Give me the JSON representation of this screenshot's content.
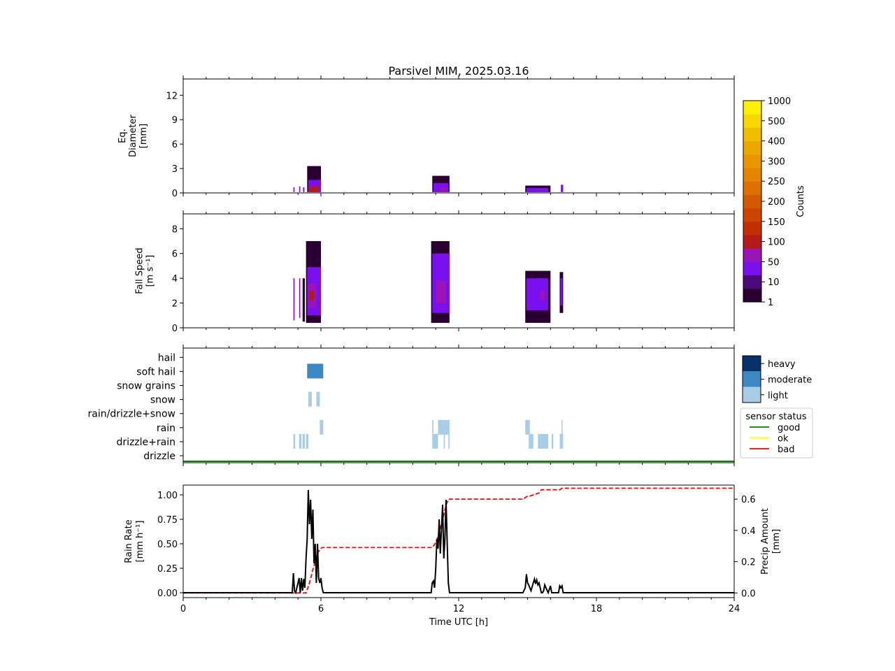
{
  "chart_data": [
    {
      "panel": "diameter",
      "type": "heatmap",
      "title": "Parsivel MIM, 2025.03.16",
      "ylabel_lines": [
        "Eq.",
        "Diameter",
        "[mm]"
      ],
      "ylim": [
        0,
        14
      ],
      "yticks": [
        0,
        3,
        6,
        9,
        12
      ],
      "xlim": [
        0,
        24
      ],
      "blobs": [
        {
          "x0": 4.8,
          "x1": 4.85,
          "y0": 0.1,
          "y1": 0.7,
          "level": "10"
        },
        {
          "x0": 5.05,
          "x1": 5.1,
          "y0": 0.1,
          "y1": 0.8,
          "level": "10"
        },
        {
          "x0": 5.22,
          "x1": 5.28,
          "y0": 0.1,
          "y1": 0.7,
          "level": "50"
        },
        {
          "x0": 5.4,
          "x1": 6.0,
          "y0": 0.1,
          "y1": 3.3,
          "level": "1"
        },
        {
          "x0": 5.45,
          "x1": 6.0,
          "y0": 0.1,
          "y1": 1.6,
          "level": "10"
        },
        {
          "x0": 5.5,
          "x1": 5.9,
          "y0": 0.1,
          "y1": 0.8,
          "level": "100"
        },
        {
          "x0": 10.85,
          "x1": 11.6,
          "y0": 0.1,
          "y1": 2.1,
          "level": "1"
        },
        {
          "x0": 10.9,
          "x1": 11.55,
          "y0": 0.1,
          "y1": 1.2,
          "level": "10"
        },
        {
          "x0": 11.2,
          "x1": 11.5,
          "y0": 0.1,
          "y1": 0.7,
          "level": "50"
        },
        {
          "x0": 14.9,
          "x1": 16.0,
          "y0": 0.1,
          "y1": 0.9,
          "level": "1"
        },
        {
          "x0": 14.95,
          "x1": 15.9,
          "y0": 0.1,
          "y1": 0.6,
          "level": "10"
        },
        {
          "x0": 16.45,
          "x1": 16.55,
          "y0": 0.1,
          "y1": 1.0,
          "level": "10"
        }
      ],
      "colorbar": {
        "label": "Counts",
        "ticks": [
          "1",
          "10",
          "50",
          "100",
          "150",
          "200",
          "250",
          "300",
          "400",
          "500",
          "1000"
        ],
        "colors": [
          "#2a0033",
          "#4a0a7a",
          "#7a10ee",
          "#9a14b8",
          "#b51a18",
          "#c42e00",
          "#cc4400",
          "#d45a00",
          "#dd7000",
          "#e48400",
          "#e99600",
          "#eda800",
          "#f2bd00",
          "#f8d800",
          "#ffef00"
        ]
      }
    },
    {
      "panel": "fall-speed",
      "type": "heatmap",
      "ylabel_lines": [
        "Fall Speed",
        "[m s⁻¹]"
      ],
      "ylim": [
        0,
        9.2
      ],
      "yticks": [
        0,
        2,
        4,
        6,
        8
      ],
      "xlim": [
        0,
        24
      ],
      "blobs": [
        {
          "x0": 4.8,
          "x1": 4.85,
          "y0": 0.6,
          "y1": 4.0,
          "level": "10"
        },
        {
          "x0": 5.05,
          "x1": 5.1,
          "y0": 0.8,
          "y1": 4.0,
          "level": "10"
        },
        {
          "x0": 5.2,
          "x1": 5.3,
          "y0": 0.5,
          "y1": 4.0,
          "level": "1"
        },
        {
          "x0": 5.35,
          "x1": 6.0,
          "y0": 0.4,
          "y1": 7.0,
          "level": "1"
        },
        {
          "x0": 5.4,
          "x1": 6.0,
          "y0": 1.0,
          "y1": 4.9,
          "level": "10"
        },
        {
          "x0": 5.45,
          "x1": 5.8,
          "y0": 1.6,
          "y1": 3.6,
          "level": "50"
        },
        {
          "x0": 5.5,
          "x1": 5.7,
          "y0": 2.2,
          "y1": 3.0,
          "level": "100"
        },
        {
          "x0": 10.8,
          "x1": 11.6,
          "y0": 0.4,
          "y1": 7.0,
          "level": "1"
        },
        {
          "x0": 10.85,
          "x1": 11.6,
          "y0": 1.2,
          "y1": 6.0,
          "level": "10"
        },
        {
          "x0": 11.0,
          "x1": 11.45,
          "y0": 2.0,
          "y1": 3.8,
          "level": "50"
        },
        {
          "x0": 14.9,
          "x1": 16.0,
          "y0": 0.4,
          "y1": 4.6,
          "level": "1"
        },
        {
          "x0": 14.95,
          "x1": 15.9,
          "y0": 1.4,
          "y1": 4.0,
          "level": "10"
        },
        {
          "x0": 15.55,
          "x1": 15.75,
          "y0": 2.2,
          "y1": 3.0,
          "level": "50"
        },
        {
          "x0": 16.4,
          "x1": 16.55,
          "y0": 1.2,
          "y1": 4.5,
          "level": "1"
        },
        {
          "x0": 16.43,
          "x1": 16.52,
          "y0": 1.8,
          "y1": 4.0,
          "level": "10"
        }
      ]
    },
    {
      "panel": "precip-type",
      "type": "heatmap",
      "categories": [
        "drizzle",
        "drizzle+rain",
        "rain",
        "rain/drizzle+snow",
        "snow",
        "snow grains",
        "soft hail",
        "hail"
      ],
      "xlim": [
        0,
        24
      ],
      "intensity_colors": {
        "light": "#a8cde6",
        "moderate": "#3b88c2",
        "heavy": "#08306b"
      },
      "legend": {
        "labels": [
          "heavy",
          "moderate",
          "light"
        ],
        "keys": [
          "heavy",
          "moderate",
          "light"
        ]
      },
      "blocks": [
        {
          "cat": "soft hail",
          "x0": 5.4,
          "x1": 6.1,
          "level": "moderate"
        },
        {
          "cat": "snow",
          "x0": 5.45,
          "x1": 5.6,
          "level": "light"
        },
        {
          "cat": "snow",
          "x0": 5.8,
          "x1": 5.95,
          "level": "light"
        },
        {
          "cat": "rain",
          "x0": 5.95,
          "x1": 6.1,
          "level": "light"
        },
        {
          "cat": "drizzle+rain",
          "x0": 4.8,
          "x1": 4.88,
          "level": "light"
        },
        {
          "cat": "drizzle+rain",
          "x0": 5.05,
          "x1": 5.15,
          "level": "light"
        },
        {
          "cat": "drizzle+rain",
          "x0": 5.2,
          "x1": 5.3,
          "level": "light"
        },
        {
          "cat": "drizzle+rain",
          "x0": 5.35,
          "x1": 5.45,
          "level": "light"
        },
        {
          "cat": "rain",
          "x0": 10.85,
          "x1": 10.9,
          "level": "light"
        },
        {
          "cat": "rain",
          "x0": 11.1,
          "x1": 11.6,
          "level": "light"
        },
        {
          "cat": "drizzle+rain",
          "x0": 10.85,
          "x1": 11.1,
          "level": "light"
        },
        {
          "cat": "drizzle+rain",
          "x0": 11.35,
          "x1": 11.4,
          "level": "light"
        },
        {
          "cat": "drizzle+rain",
          "x0": 11.55,
          "x1": 11.6,
          "level": "light"
        },
        {
          "cat": "rain",
          "x0": 14.9,
          "x1": 15.1,
          "level": "light"
        },
        {
          "cat": "drizzle+rain",
          "x0": 15.05,
          "x1": 15.25,
          "level": "light"
        },
        {
          "cat": "drizzle+rain",
          "x0": 15.45,
          "x1": 15.9,
          "level": "light"
        },
        {
          "cat": "drizzle+rain",
          "x0": 16.05,
          "x1": 16.12,
          "level": "light"
        },
        {
          "cat": "drizzle+rain",
          "x0": 16.4,
          "x1": 16.55,
          "level": "light"
        },
        {
          "cat": "rain",
          "x0": 16.48,
          "x1": 16.52,
          "level": "light"
        }
      ],
      "sensor_status_line": "good",
      "status_legend": {
        "title": "sensor status",
        "items": [
          {
            "label": "good",
            "color": "#008000"
          },
          {
            "label": "ok",
            "color": "#ffff00"
          },
          {
            "label": "bad",
            "color": "#ff0000"
          }
        ]
      }
    },
    {
      "panel": "rain-rate",
      "type": "line",
      "xlabel": "Time UTC [h]",
      "ylabel_lines": [
        "Rain Rate",
        "[mm h⁻¹]"
      ],
      "y2label_lines": [
        "Precip Amount",
        "[mm]"
      ],
      "xlim": [
        0,
        24
      ],
      "xticks": [
        0,
        6,
        12,
        18,
        24
      ],
      "ylim": [
        -0.05,
        1.1
      ],
      "yticks": [
        0.0,
        0.25,
        0.5,
        0.75,
        1.0
      ],
      "ytick_labels": [
        "0.00",
        "0.25",
        "0.50",
        "0.75",
        "1.00"
      ],
      "y2lim": [
        -0.03,
        0.69
      ],
      "y2ticks": [
        0.0,
        0.2,
        0.4,
        0.6
      ],
      "y2tick_labels": [
        "0.0",
        "0.2",
        "0.4",
        "0.6"
      ],
      "series": [
        {
          "role": "rain-rate",
          "color": "#000000",
          "x": [
            0,
            4.75,
            4.8,
            4.85,
            4.9,
            5.05,
            5.1,
            5.15,
            5.2,
            5.25,
            5.3,
            5.35,
            5.4,
            5.45,
            5.5,
            5.55,
            5.6,
            5.65,
            5.7,
            5.75,
            5.8,
            5.85,
            5.9,
            5.95,
            6.0,
            6.05,
            6.1,
            10.8,
            10.85,
            10.9,
            10.95,
            11.0,
            11.05,
            11.1,
            11.15,
            11.2,
            11.25,
            11.3,
            11.35,
            11.4,
            11.45,
            11.5,
            11.55,
            11.6,
            14.8,
            14.9,
            14.95,
            15.0,
            15.05,
            15.15,
            15.25,
            15.3,
            15.35,
            15.4,
            15.45,
            15.5,
            15.55,
            15.6,
            15.65,
            15.7,
            15.75,
            15.8,
            15.9,
            16.0,
            16.05,
            16.1,
            16.35,
            16.4,
            16.45,
            16.5,
            16.55,
            16.6,
            24
          ],
          "y": [
            0,
            0,
            0.2,
            0.02,
            0,
            0.15,
            0.0,
            0.15,
            0.02,
            0.14,
            0.05,
            0.35,
            0.55,
            1.05,
            0.7,
            0.95,
            0.55,
            0.85,
            0.3,
            0.5,
            0.1,
            0.5,
            0.15,
            0.1,
            0.15,
            0.05,
            0,
            0,
            0.1,
            0.12,
            0.05,
            0.25,
            0.55,
            0.45,
            0.75,
            0.4,
            0.65,
            0.9,
            0.35,
            0.55,
            0.95,
            0.5,
            0.1,
            0,
            0,
            0.05,
            0.19,
            0.1,
            0.08,
            0.02,
            0.1,
            0.14,
            0.09,
            0.13,
            0.08,
            0.1,
            0.05,
            0.0,
            0,
            0.02,
            0.08,
            0.05,
            0.0,
            0.07,
            0.0,
            0,
            0,
            0.07,
            0.05,
            0.07,
            0.0,
            0,
            0
          ]
        },
        {
          "role": "precip-amount",
          "axis": "right",
          "color": "#ff0000",
          "dashed": true,
          "x": [
            0,
            5.35,
            5.45,
            5.55,
            5.65,
            5.75,
            5.85,
            5.95,
            6.05,
            10.85,
            10.95,
            11.05,
            11.15,
            11.25,
            11.35,
            11.45,
            11.55,
            14.8,
            14.9,
            15.0,
            15.1,
            15.3,
            15.5,
            15.6,
            15.7,
            16.0,
            16.4,
            16.5,
            24
          ],
          "y": [
            0,
            0.0,
            0.04,
            0.09,
            0.15,
            0.2,
            0.25,
            0.28,
            0.29,
            0.29,
            0.31,
            0.34,
            0.39,
            0.44,
            0.5,
            0.56,
            0.6,
            0.6,
            0.61,
            0.62,
            0.62,
            0.63,
            0.64,
            0.66,
            0.66,
            0.66,
            0.66,
            0.67,
            0.67
          ]
        }
      ]
    }
  ]
}
